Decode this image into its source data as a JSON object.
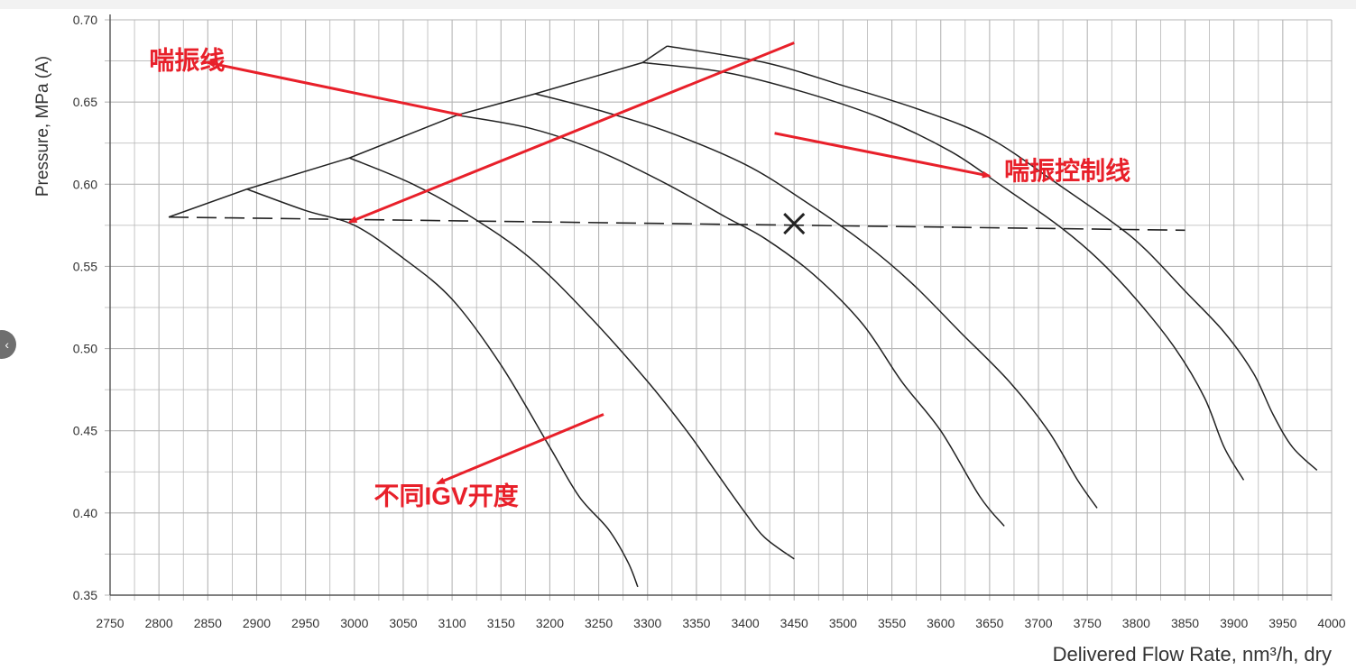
{
  "chart_data": {
    "type": "line",
    "xlabel": "Delivered Flow Rate, nm³/h, dry",
    "ylabel": "Pressure, MPa (A)",
    "xlim": [
      2750,
      4000
    ],
    "ylim": [
      0.35,
      0.7
    ],
    "x_ticks": [
      "2750",
      "2800",
      "2850",
      "2900",
      "2950",
      "3000",
      "3050",
      "3100",
      "3150",
      "3200",
      "3250",
      "3300",
      "3350",
      "3400",
      "3450",
      "3500",
      "3550",
      "3600",
      "3650",
      "3700",
      "3750",
      "3800",
      "3850",
      "3900",
      "3950",
      "4000"
    ],
    "y_ticks": [
      "0.35",
      "0.40",
      "0.45",
      "0.50",
      "0.55",
      "0.60",
      "0.65",
      "0.70"
    ],
    "grid": true,
    "series": [
      {
        "x": [
          2890,
          2950,
          3000,
          3050,
          3100,
          3150,
          3200,
          3230,
          3260,
          3280,
          3290
        ],
        "y": [
          0.597,
          0.584,
          0.575,
          0.555,
          0.53,
          0.49,
          0.44,
          0.41,
          0.39,
          0.37,
          0.355
        ]
      },
      {
        "x": [
          2995,
          3060,
          3120,
          3180,
          3240,
          3300,
          3340,
          3370,
          3400,
          3420,
          3450
        ],
        "y": [
          0.616,
          0.6,
          0.58,
          0.555,
          0.52,
          0.48,
          0.45,
          0.425,
          0.4,
          0.385,
          0.372
        ]
      },
      {
        "x": [
          3105,
          3180,
          3250,
          3320,
          3380,
          3420,
          3470,
          3520,
          3560,
          3600,
          3640,
          3665
        ],
        "y": [
          0.642,
          0.634,
          0.62,
          0.6,
          0.58,
          0.567,
          0.545,
          0.515,
          0.48,
          0.45,
          0.41,
          0.392
        ]
      },
      {
        "x": [
          3185,
          3250,
          3320,
          3400,
          3460,
          3520,
          3570,
          3620,
          3670,
          3710,
          3740,
          3760
        ],
        "y": [
          0.655,
          0.645,
          0.632,
          0.612,
          0.59,
          0.565,
          0.54,
          0.51,
          0.48,
          0.45,
          0.42,
          0.403
        ]
      },
      {
        "x": [
          3295,
          3380,
          3460,
          3540,
          3610,
          3660,
          3720,
          3760,
          3800,
          3840,
          3870,
          3890,
          3910
        ],
        "y": [
          0.674,
          0.668,
          0.656,
          0.64,
          0.62,
          0.6,
          0.575,
          0.555,
          0.53,
          0.5,
          0.47,
          0.44,
          0.42
        ]
      },
      {
        "x": [
          3320,
          3420,
          3500,
          3580,
          3650,
          3720,
          3780,
          3810,
          3850,
          3890,
          3920,
          3940,
          3960,
          3985
        ],
        "y": [
          0.684,
          0.674,
          0.66,
          0.645,
          0.628,
          0.6,
          0.575,
          0.56,
          0.535,
          0.51,
          0.485,
          0.46,
          0.44,
          0.426
        ]
      }
    ],
    "surge_line": {
      "x": [
        2810,
        2890,
        2995,
        3105,
        3185,
        3295,
        3320
      ],
      "y": [
        0.58,
        0.597,
        0.616,
        0.642,
        0.655,
        0.674,
        0.684
      ]
    },
    "control_line": {
      "x": [
        2810,
        3850
      ],
      "y": [
        0.58,
        0.572
      ]
    },
    "operating_point": {
      "x": 3450,
      "y": 0.576
    },
    "annotations": [
      {
        "text": "喘振线",
        "x": 2790,
        "y": 0.67,
        "color": "#e8202a"
      },
      {
        "text": "喘振控制线",
        "x": 3665,
        "y": 0.603,
        "color": "#e8202a"
      },
      {
        "text": "不同IGV开度",
        "x": 3020,
        "y": 0.405,
        "color": "#e8202a"
      }
    ],
    "colors": {
      "grid": "#b5b5b5",
      "curve": "#222222",
      "annotation": "#e8202a",
      "axis_text": "#333333"
    }
  }
}
